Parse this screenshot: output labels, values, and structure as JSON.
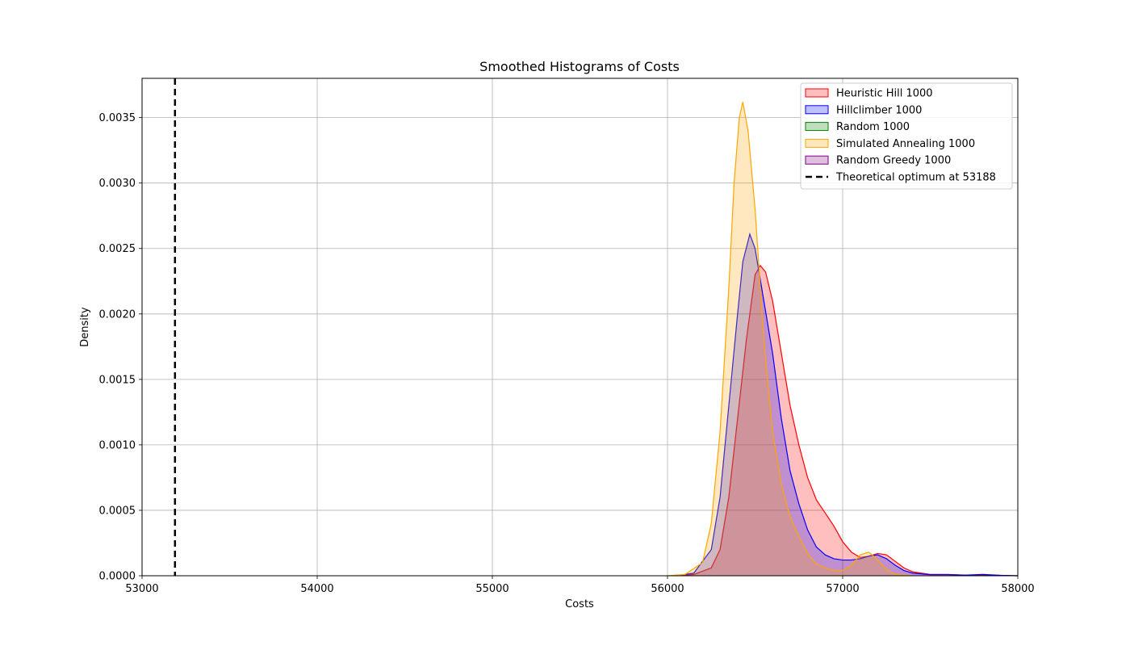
{
  "chart_data": {
    "type": "area",
    "title": "Smoothed Histograms of  Costs",
    "xlabel": "Costs",
    "ylabel": "Density",
    "xlim": [
      53000,
      58000
    ],
    "ylim": [
      0,
      0.0038
    ],
    "x_ticks": [
      "53000",
      "54000",
      "55000",
      "56000",
      "57000",
      "58000"
    ],
    "y_ticks": [
      "0.0000",
      "0.0005",
      "0.0010",
      "0.0015",
      "0.0020",
      "0.0025",
      "0.0030",
      "0.0035"
    ],
    "grid": true,
    "legend_position": "top-right",
    "series": [
      {
        "name": "Heuristic Hill 1000",
        "color": "#ff0000",
        "x": [
          56050,
          56150,
          56250,
          56300,
          56350,
          56400,
          56450,
          56500,
          56530,
          56560,
          56600,
          56650,
          56700,
          56750,
          56800,
          56850,
          56900,
          56950,
          57000,
          57050,
          57100,
          57150,
          57200,
          57250,
          57300,
          57350,
          57400,
          57500,
          57600,
          57700,
          57800,
          57900,
          58000
        ],
        "y": [
          0,
          1e-05,
          6e-05,
          0.0002,
          0.0006,
          0.0012,
          0.0018,
          0.0023,
          0.00237,
          0.00232,
          0.0021,
          0.0017,
          0.0013,
          0.001,
          0.00075,
          0.00058,
          0.00048,
          0.00038,
          0.00026,
          0.00018,
          0.00014,
          0.00015,
          0.00017,
          0.00016,
          0.00011,
          6e-05,
          3e-05,
          1e-05,
          1e-05,
          5e-06,
          5e-06,
          3e-06,
          0
        ]
      },
      {
        "name": "Hillclimber 1000",
        "color": "#0000ff",
        "x": [
          56050,
          56150,
          56250,
          56300,
          56350,
          56400,
          56430,
          56470,
          56500,
          56550,
          56600,
          56650,
          56700,
          56750,
          56800,
          56850,
          56900,
          56950,
          57000,
          57050,
          57100,
          57150,
          57200,
          57250,
          57300,
          57350,
          57400,
          57500,
          57600,
          57700,
          57800,
          57900,
          58000
        ],
        "y": [
          0,
          2e-05,
          0.0002,
          0.0006,
          0.0013,
          0.002,
          0.0024,
          0.00261,
          0.0025,
          0.0021,
          0.0017,
          0.0012,
          0.0008,
          0.00055,
          0.00035,
          0.00022,
          0.00016,
          0.00013,
          0.00012,
          0.00012,
          0.00013,
          0.00015,
          0.00016,
          0.00013,
          8e-05,
          4e-05,
          2e-05,
          8e-06,
          8e-06,
          5e-06,
          1e-05,
          3e-06,
          0
        ]
      },
      {
        "name": "Random 1000",
        "color": "#008000",
        "x": [],
        "y": []
      },
      {
        "name": "Simulated Annealing 1000",
        "color": "#ffa500",
        "x": [
          56000,
          56100,
          56200,
          56250,
          56300,
          56350,
          56380,
          56410,
          56430,
          56460,
          56500,
          56550,
          56600,
          56650,
          56700,
          56750,
          56800,
          56850,
          56900,
          56950,
          57000,
          57050,
          57100,
          57150,
          57200,
          57250,
          57300,
          57400
        ],
        "y": [
          0,
          1e-05,
          0.0001,
          0.0004,
          0.0011,
          0.0022,
          0.003,
          0.0035,
          0.00362,
          0.0034,
          0.0028,
          0.0018,
          0.0011,
          0.0007,
          0.00045,
          0.0003,
          0.00017,
          9e-05,
          6e-05,
          4e-05,
          4e-05,
          8e-05,
          0.00016,
          0.00018,
          0.00012,
          5e-05,
          1e-05,
          0
        ]
      },
      {
        "name": "Random Greedy 1000",
        "color": "#800080",
        "x": [],
        "y": []
      }
    ],
    "reference_line": {
      "name": "Theoretical optimum at 53188",
      "x": 53188,
      "style": "dashed",
      "color": "#000000"
    }
  }
}
